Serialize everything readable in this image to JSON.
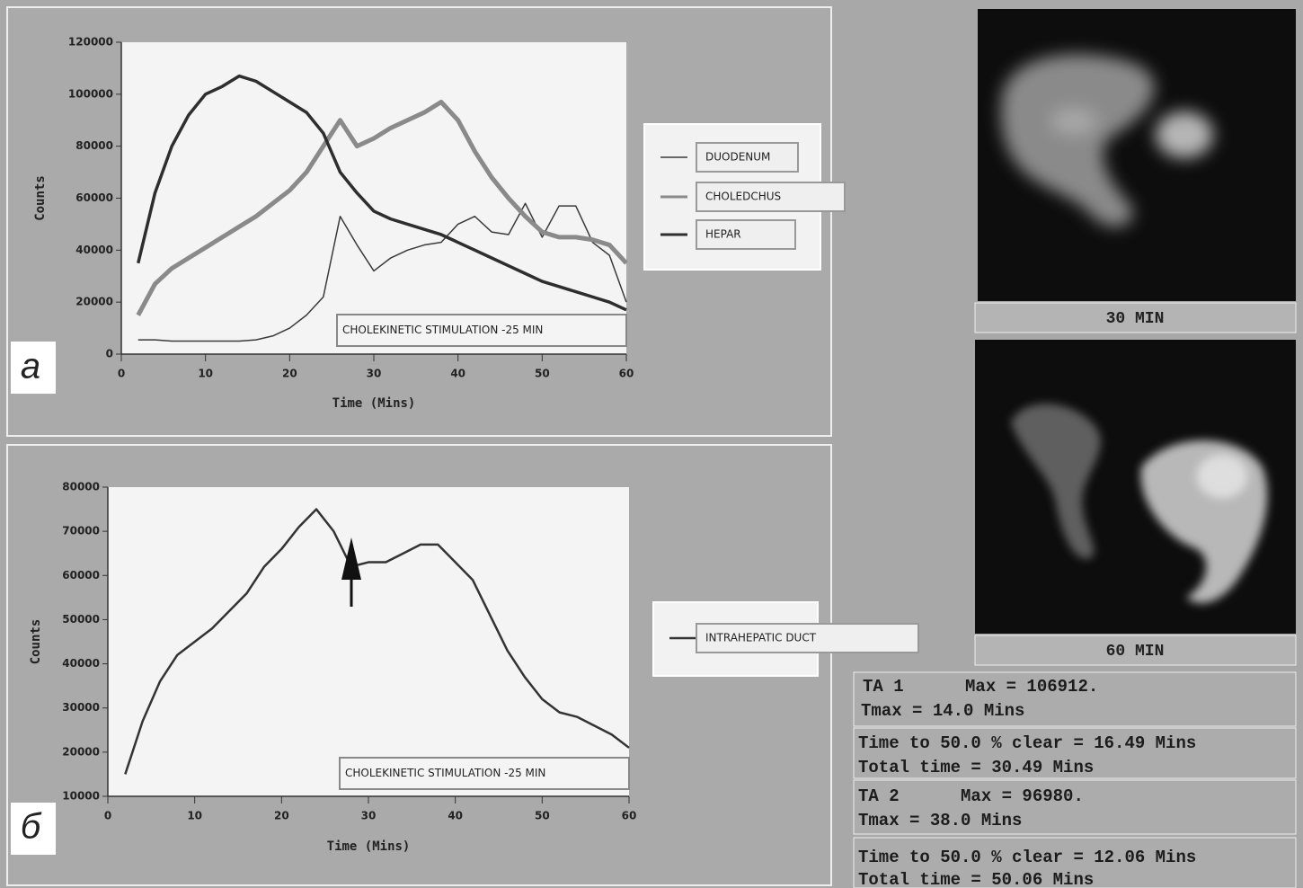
{
  "chart_data": [
    {
      "type": "line",
      "y_label": "Counts",
      "x_label": "Time (Mins)",
      "annotation": "CHOLEKINETIC STIMULATION -25 MIN",
      "xlim": [
        0,
        60
      ],
      "xticks": [
        0,
        10,
        20,
        30,
        40,
        50,
        60
      ],
      "ylim": [
        0,
        120000
      ],
      "yticks": [
        0,
        20000,
        40000,
        60000,
        80000,
        100000,
        120000
      ],
      "x": [
        2,
        4,
        6,
        8,
        10,
        12,
        14,
        16,
        18,
        20,
        22,
        24,
        26,
        28,
        30,
        32,
        34,
        36,
        38,
        40,
        42,
        44,
        46,
        48,
        50,
        52,
        54,
        56,
        58,
        60
      ],
      "series": [
        {
          "name": "DUODENUM",
          "color": "#3a3a3a",
          "line_width": 1.5,
          "values": [
            5500,
            5500,
            5000,
            5000,
            5000,
            5000,
            5000,
            5500,
            7000,
            10000,
            15000,
            22000,
            53000,
            42000,
            32000,
            37000,
            40000,
            42000,
            43000,
            50000,
            53000,
            47000,
            46000,
            58000,
            45000,
            57000,
            57000,
            43000,
            38000,
            20000
          ]
        },
        {
          "name": "CHOLEDCHUS",
          "color": "#8a8a8a",
          "line_width": 5,
          "values": [
            15000,
            27000,
            33000,
            37000,
            41000,
            45000,
            49000,
            53000,
            58000,
            63000,
            70000,
            80000,
            90000,
            80000,
            83000,
            87000,
            90000,
            93000,
            97000,
            90000,
            78000,
            68000,
            60000,
            53000,
            47000,
            45000,
            45000,
            44000,
            42000,
            35000
          ]
        },
        {
          "name": "HEPAR",
          "color": "#2e2e2e",
          "line_width": 3.5,
          "values": [
            35000,
            62000,
            80000,
            92000,
            100000,
            103000,
            107000,
            105000,
            101000,
            97000,
            93000,
            85000,
            70000,
            62000,
            55000,
            52000,
            50000,
            48000,
            46000,
            43000,
            40000,
            37000,
            34000,
            31000,
            28000,
            26000,
            24000,
            22000,
            20000,
            17000
          ]
        }
      ]
    },
    {
      "type": "line",
      "y_label": "Counts",
      "x_label": "Time (Mins)",
      "annotation": "CHOLEKINETIC STIMULATION -25 MIN",
      "xlim": [
        0,
        60
      ],
      "xticks": [
        0,
        10,
        20,
        30,
        40,
        50,
        60
      ],
      "ylim": [
        10000,
        80000
      ],
      "yticks": [
        10000,
        20000,
        30000,
        40000,
        50000,
        60000,
        70000,
        80000
      ],
      "x": [
        2,
        4,
        6,
        8,
        10,
        12,
        14,
        16,
        18,
        20,
        22,
        24,
        26,
        28,
        30,
        32,
        34,
        36,
        38,
        40,
        42,
        44,
        46,
        48,
        50,
        52,
        54,
        56,
        58,
        60
      ],
      "series": [
        {
          "name": "INTRAHEPATIC DUCT",
          "color": "#333333",
          "line_width": 2.5,
          "values": [
            15000,
            27000,
            36000,
            42000,
            45000,
            48000,
            52000,
            56000,
            62000,
            66000,
            71000,
            75000,
            70000,
            62000,
            63000,
            63000,
            65000,
            67000,
            67000,
            63000,
            59000,
            51000,
            43000,
            37000,
            32000,
            29000,
            28000,
            26000,
            24000,
            21000
          ]
        }
      ]
    }
  ],
  "panel_labels": [
    "a",
    "б"
  ],
  "image_captions": [
    "30 MIN",
    "60 MIN"
  ],
  "info_panels": [
    {
      "lines": [
        "TA 1      Max = 106912.",
        "Tmax = 14.0 Mins"
      ]
    },
    {
      "lines": [
        "Time to 50.0 % clear = 16.49 Mins",
        "Total time = 30.49 Mins"
      ]
    },
    {
      "lines": [
        "TA 2      Max = 96980.",
        "Tmax = 38.0 Mins"
      ]
    },
    {
      "lines": [
        "Time to 50.0 % clear = 12.06 Mins",
        "Total time = 50.06 Mins"
      ]
    }
  ]
}
